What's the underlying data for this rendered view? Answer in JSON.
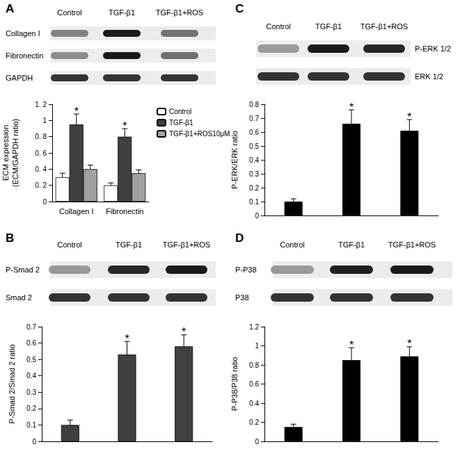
{
  "chart_data": [
    {
      "type": "bar",
      "title": "A",
      "categories": [
        "Collagen I",
        "Fibronectin"
      ],
      "series": [
        {
          "name": "Control",
          "color": "#ffffff",
          "values": [
            0.3,
            0.2
          ],
          "errors": [
            0.05,
            0.03
          ]
        },
        {
          "name": "TGF-β1",
          "color": "#404040",
          "values": [
            0.95,
            0.8
          ],
          "errors": [
            0.13,
            0.1
          ]
        },
        {
          "name": "TGF-β1+ROS10μM",
          "color": "#a0a0a0",
          "values": [
            0.4,
            0.35
          ],
          "errors": [
            0.05,
            0.04
          ]
        }
      ],
      "ylabel": "ECM expression\n(ECM/GAPDH ratio)",
      "ylim": [
        0,
        1.2
      ],
      "yticks": [
        0,
        {
          "value": 0.2,
          "label": "0. 2"
        },
        {
          "value": 0.4,
          "label": "0. 4"
        },
        {
          "value": 0.6,
          "label": "0. 6"
        },
        {
          "value": 0.8,
          "label": "0. 8"
        },
        1,
        {
          "value": 1.2,
          "label": "1. 2"
        }
      ],
      "grid": false,
      "legend": "upper right",
      "annotations": [
        {
          "series": "TGF-β1",
          "category": "Collagen I",
          "text": "*"
        },
        {
          "series": "TGF-β1",
          "category": "Fibronectin",
          "text": "*"
        }
      ]
    },
    {
      "type": "bar",
      "title": "B",
      "categories": [
        null,
        null,
        null
      ],
      "values": [
        0.1,
        0.53,
        0.58
      ],
      "errors": [
        0.03,
        0.08,
        0.07
      ],
      "color": "#404040",
      "ylabel": "P-Smad 2/Smad 2 ratio",
      "ylim": [
        0,
        0.7
      ],
      "yticks": [
        0,
        0.1,
        0.2,
        0.3,
        0.4,
        0.5,
        0.6,
        0.7
      ],
      "grid": false,
      "annotations": [
        {
          "index": 1,
          "text": "*"
        },
        {
          "index": 2,
          "text": "*"
        }
      ]
    },
    {
      "type": "bar",
      "title": "C",
      "categories": [
        null,
        null,
        null
      ],
      "values": [
        0.1,
        0.66,
        0.61
      ],
      "errors": [
        0.02,
        0.1,
        0.08
      ],
      "color": "#000000",
      "ylabel": "P-ERK/ERK ratio",
      "ylim": [
        0,
        0.8
      ],
      "yticks": [
        0,
        0.1,
        0.2,
        0.3,
        0.4,
        0.5,
        0.6,
        0.7,
        0.8
      ],
      "grid": false,
      "annotations": [
        {
          "index": 1,
          "text": "*"
        },
        {
          "index": 2,
          "text": "*"
        }
      ]
    },
    {
      "type": "bar",
      "title": "D",
      "categories": [
        null,
        null,
        null
      ],
      "values": [
        0.15,
        0.85,
        0.89
      ],
      "errors": [
        0.03,
        0.13,
        0.1
      ],
      "color": "#000000",
      "ylabel": "P-P38/P38 ratio",
      "ylim": [
        0,
        1.2
      ],
      "yticks": [
        0,
        0.2,
        0.4,
        0.6,
        0.8,
        1,
        1.2
      ],
      "grid": false,
      "annotations": [
        {
          "index": 1,
          "text": "*"
        },
        {
          "index": 2,
          "text": "*"
        }
      ]
    }
  ],
  "blots": [
    {
      "columns": [
        "Control",
        "TGF-β1",
        "TGF-β1+ROS"
      ],
      "rows": [
        "Collagen I",
        "Fibronectin",
        "GAPDH"
      ]
    },
    {
      "columns": [
        "Control",
        "TGF-β1",
        "TGF-β1+ROS"
      ],
      "rows": [
        "P-Smad 2",
        "Smad 2"
      ]
    },
    {
      "columns": [
        "Control",
        "TGF-β1",
        "TGF-β1+ROS"
      ],
      "rows": [
        "P-ERK 1/2",
        "ERK 1/2"
      ]
    },
    {
      "columns": [
        "Control",
        "TGF-β1",
        "TGF-β1+ROS"
      ],
      "rows": [
        "P-P38",
        "P38"
      ]
    }
  ]
}
